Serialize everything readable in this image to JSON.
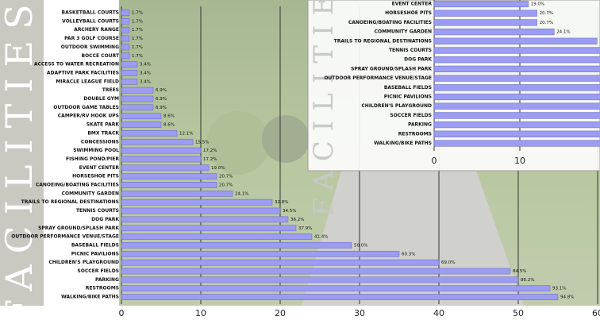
{
  "chart_data": {
    "type": "bar",
    "orientation": "horizontal",
    "side_title": "FACILITIES",
    "categories": [
      "BASKETBALL COURTS",
      "VOLLEYBALL COURTS",
      "ARCHERY RANGE",
      "PAR 3 GOLF COURSE",
      "OUTDOOR SWIMMING",
      "BOCCE COURT",
      "ACCESS TO WATER RECREATION",
      "ADAPTIVE PARK FACILITIES",
      "MIRACLE LEAGUE FIELD",
      "TREES",
      "DOUBLE GYM",
      "OUTDOOR GAME TABLES",
      "CAMPER/RV HOOK UPS",
      "SKATE PARK",
      "BMX TRACK",
      "CONCESSIONS",
      "SWIMMING POOL",
      "FISHING POND/PIER",
      "EVENT CENTER",
      "HORSESHOE PITS",
      "CANOEING/BOATING FACILITIES",
      "COMMUNITY GARDEN",
      "TRAILS TO REGIONAL DESTINATIONS",
      "TENNIS COURTS",
      "DOG PARK",
      "SPRAY GROUND/SPLASH PARK",
      "OUTDOOR PERFORMANCE VENUE/STAGE",
      "BASEBALL FIELDS",
      "PICNIC PAVILIONS",
      "CHILDREN'S PLAYGROUND",
      "SOCCER FIELDS",
      "PARKING",
      "RESTROOMS",
      "WALKING/BIKE PATHS"
    ],
    "values": [
      1,
      1,
      1,
      1,
      1,
      1,
      2,
      2,
      2,
      4,
      4,
      4,
      5,
      5,
      7,
      9,
      10,
      10,
      11,
      12,
      12,
      14,
      19,
      20,
      21,
      22,
      24,
      29,
      35,
      40,
      49,
      50,
      54,
      55
    ],
    "percent_labels": [
      "1.7%",
      "1.7%",
      "1.7%",
      "1.7%",
      "1.7%",
      "1.7%",
      "3.4%",
      "3.4%",
      "3.4%",
      "6.9%",
      "6.9%",
      "6.9%",
      "8.6%",
      "8.6%",
      "12.1%",
      "15.5%",
      "17.2%",
      "17.2%",
      "19.0%",
      "20.7%",
      "20.7%",
      "24.1%",
      "32.8%",
      "34.5%",
      "36.2%",
      "37.9%",
      "41.4%",
      "50.0%",
      "60.3%",
      "69.0%",
      "84.5%",
      "86.2%",
      "93.1%",
      "94.8%"
    ],
    "color": "#9c9cf2",
    "xlim": [
      0,
      60
    ],
    "xticks": [
      0,
      10,
      20,
      30,
      40,
      50,
      60
    ],
    "grid": true,
    "inset_from": 18
  }
}
